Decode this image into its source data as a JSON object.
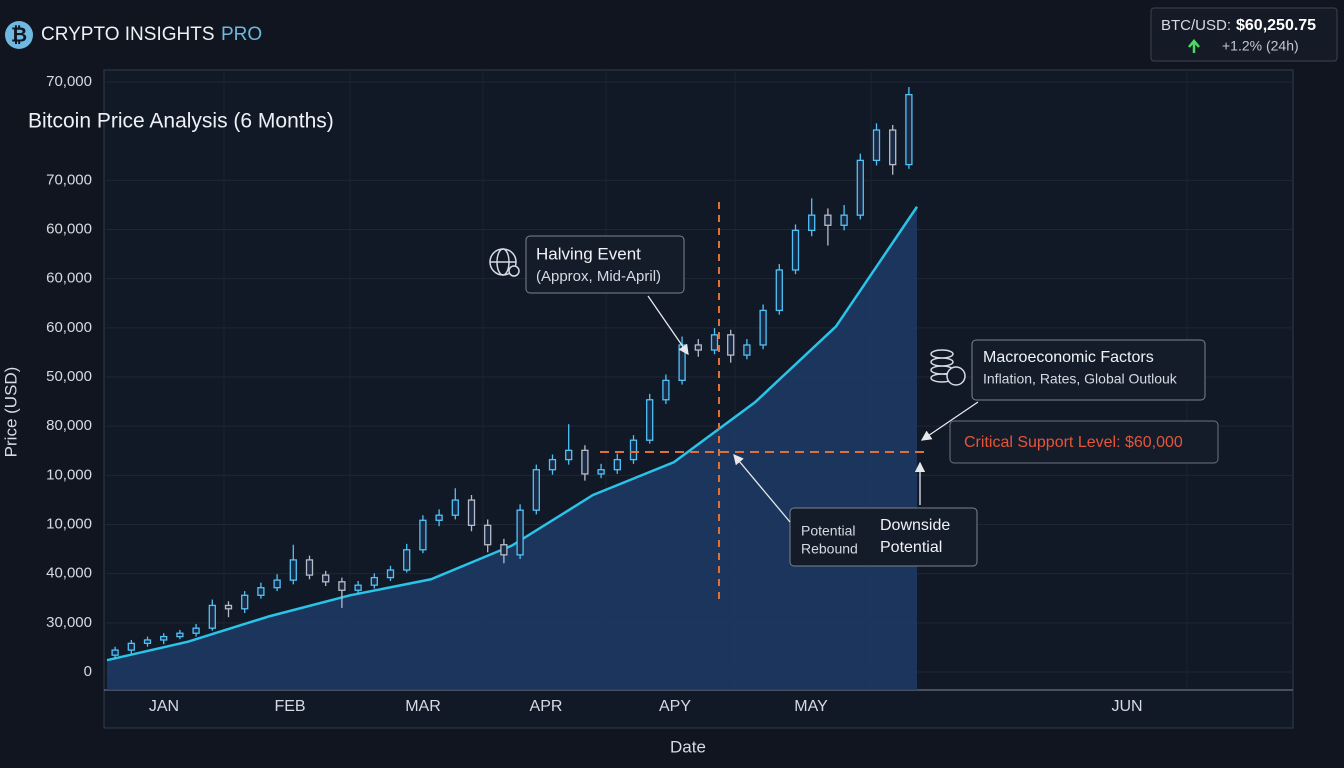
{
  "header": {
    "brand": "CRYPTO INSIGHTS",
    "brand_suffix": "PRO"
  },
  "ticker": {
    "pair": "BTC/USD:",
    "price": "$60,250.75",
    "change": "+1.2% (24h)"
  },
  "chart_data": {
    "type": "candlestick",
    "title": "Bitcoin Price Analysis (6 Months)",
    "y_label": "Price (USD)",
    "x_label": "Date",
    "categories": [
      "JAN",
      "FEB",
      "MAR",
      "APR",
      "APY",
      "MAY",
      "JUN"
    ],
    "ylim": [
      0,
      70000
    ],
    "yticks": [
      0,
      {
        "value": 70000,
        "label": "70,000"
      }
    ],
    "ytick_labels": [
      "70,000",
      "60,000",
      "60,000",
      "60,000",
      "50,000",
      "80,000",
      "10,000",
      "10,000",
      "40,000",
      "30,000"
    ],
    "up_color": "#4fc3f7",
    "down_color": "#b8bcc6",
    "trend_color": "#29c4e8",
    "area_color": "#1d3b66",
    "candles": [
      [
        2000,
        3000,
        1500,
        2600
      ],
      [
        2600,
        3800,
        2200,
        3400
      ],
      [
        3400,
        4200,
        3000,
        3800
      ],
      [
        3800,
        4600,
        3300,
        4200
      ],
      [
        4200,
        5000,
        3900,
        4600
      ],
      [
        4600,
        5700,
        4200,
        5200
      ],
      [
        5200,
        8600,
        4900,
        7900
      ],
      [
        7900,
        8400,
        6500,
        7500
      ],
      [
        7500,
        9600,
        7000,
        9100
      ],
      [
        9100,
        10600,
        8700,
        10000
      ],
      [
        10000,
        11600,
        9600,
        10900
      ],
      [
        10900,
        15100,
        10400,
        13300
      ],
      [
        13300,
        13800,
        11000,
        11500
      ],
      [
        11500,
        12000,
        10200,
        10700
      ],
      [
        10700,
        11200,
        7600,
        9700
      ],
      [
        9700,
        10800,
        9300,
        10300
      ],
      [
        10300,
        11700,
        9900,
        11200
      ],
      [
        11200,
        12600,
        10800,
        12100
      ],
      [
        12100,
        15200,
        11800,
        14500
      ],
      [
        14500,
        18600,
        14100,
        18000
      ],
      [
        18000,
        19300,
        17300,
        18600
      ],
      [
        18600,
        21800,
        18100,
        20400
      ],
      [
        20400,
        21000,
        16700,
        17400
      ],
      [
        17400,
        18100,
        14200,
        15100
      ],
      [
        15100,
        15800,
        12900,
        13900
      ],
      [
        13900,
        19900,
        13400,
        19200
      ],
      [
        19200,
        24600,
        18700,
        24000
      ],
      [
        24000,
        25800,
        23400,
        25200
      ],
      [
        25200,
        29400,
        24600,
        26300
      ],
      [
        26300,
        26900,
        22700,
        23500
      ],
      [
        23500,
        24700,
        23000,
        24000
      ],
      [
        24000,
        25900,
        23500,
        25200
      ],
      [
        25200,
        28100,
        24700,
        27500
      ],
      [
        27500,
        33000,
        27100,
        32300
      ],
      [
        32300,
        35300,
        31800,
        34600
      ],
      [
        34600,
        39800,
        34100,
        38800
      ],
      [
        38800,
        39500,
        37400,
        38200
      ],
      [
        38200,
        40800,
        37700,
        40000
      ],
      [
        40000,
        40600,
        36700,
        37600
      ],
      [
        37600,
        39500,
        37100,
        38800
      ],
      [
        38800,
        43600,
        38300,
        42900
      ],
      [
        42900,
        48400,
        42400,
        47700
      ],
      [
        47700,
        53100,
        47200,
        52400
      ],
      [
        52400,
        56200,
        51700,
        54200
      ],
      [
        54200,
        55000,
        50600,
        53000
      ],
      [
        53000,
        55400,
        52400,
        54200
      ],
      [
        54200,
        61500,
        53700,
        60700
      ],
      [
        60700,
        65100,
        60100,
        64300
      ],
      [
        64300,
        64900,
        59000,
        60200
      ],
      [
        60200,
        69400,
        59700,
        68500
      ]
    ],
    "trend": [
      1400,
      3600,
      6600,
      9100,
      11000,
      15000,
      21000,
      24900,
      32000,
      41000,
      55200
    ],
    "annotations": {
      "halving_title": "Halving Event",
      "halving_sub": "(Approx, Mid-April)",
      "macro_title": "Macroeconomic Factors",
      "macro_sub": "Inflation, Rates, Global Outlouk",
      "support": "Critical Support Level: $60,000",
      "rebound_1": "Potential",
      "rebound_2": "Rebound",
      "downside_1": "Downside",
      "downside_2": "Potential"
    }
  }
}
